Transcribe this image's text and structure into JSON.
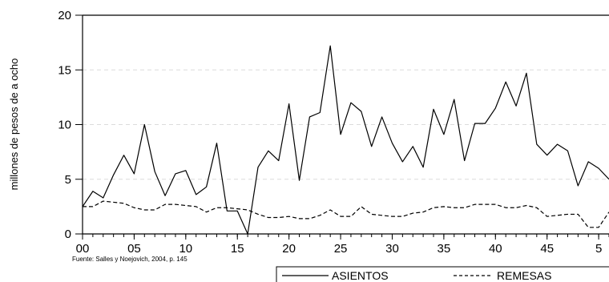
{
  "chart_data": {
    "type": "line",
    "ylabel": "millones de pesos de a ocho",
    "xlabel": "",
    "source": "Fuente: Salles y Noejovich, 2004, p. 145",
    "ylim": [
      0,
      20
    ],
    "xlim": [
      1700,
      1751
    ],
    "yticks": [
      0,
      5,
      10,
      15,
      20
    ],
    "xticks": [
      {
        "value": 1700,
        "label": "00"
      },
      {
        "value": 1705,
        "label": "05"
      },
      {
        "value": 1710,
        "label": "10"
      },
      {
        "value": 1715,
        "label": "15"
      },
      {
        "value": 1720,
        "label": "20"
      },
      {
        "value": 1725,
        "label": "25"
      },
      {
        "value": 1730,
        "label": "30"
      },
      {
        "value": 1735,
        "label": "35"
      },
      {
        "value": 1740,
        "label": "40"
      },
      {
        "value": 1745,
        "label": "45"
      },
      {
        "value": 1750,
        "label": "5"
      }
    ],
    "grid": true,
    "legend": "bottom",
    "x": [
      1700,
      1701,
      1702,
      1703,
      1704,
      1705,
      1706,
      1707,
      1708,
      1709,
      1710,
      1711,
      1712,
      1713,
      1714,
      1715,
      1716,
      1717,
      1718,
      1719,
      1720,
      1721,
      1722,
      1723,
      1724,
      1725,
      1726,
      1727,
      1728,
      1729,
      1730,
      1731,
      1732,
      1733,
      1734,
      1735,
      1736,
      1737,
      1738,
      1739,
      1740,
      1741,
      1742,
      1743,
      1744,
      1745,
      1746,
      1747,
      1748,
      1749,
      1750,
      1751
    ],
    "series": [
      {
        "name": "ASIENTOS",
        "style": "solid",
        "values": [
          2.5,
          3.9,
          3.3,
          5.4,
          7.2,
          5.5,
          10.0,
          5.7,
          3.5,
          5.5,
          5.8,
          3.6,
          4.3,
          8.3,
          2.1,
          2.1,
          0.0,
          6.1,
          7.6,
          6.7,
          11.9,
          4.9,
          10.7,
          11.1,
          17.2,
          9.1,
          12.0,
          11.2,
          8.0,
          10.7,
          8.3,
          6.6,
          8.0,
          6.1,
          11.4,
          9.1,
          12.3,
          6.7,
          10.1,
          10.1,
          11.5,
          13.9,
          11.7,
          14.7,
          8.2,
          7.2,
          8.2,
          7.6,
          4.4,
          6.6,
          6.0,
          5.0
        ]
      },
      {
        "name": "REMESAS",
        "style": "dashed",
        "values": [
          2.5,
          2.5,
          3.0,
          2.9,
          2.8,
          2.4,
          2.2,
          2.2,
          2.7,
          2.7,
          2.6,
          2.5,
          2.0,
          2.4,
          2.4,
          2.3,
          2.2,
          1.8,
          1.5,
          1.5,
          1.6,
          1.4,
          1.4,
          1.7,
          2.2,
          1.6,
          1.6,
          2.5,
          1.8,
          1.7,
          1.6,
          1.6,
          1.9,
          2.0,
          2.4,
          2.5,
          2.4,
          2.4,
          2.7,
          2.7,
          2.7,
          2.4,
          2.4,
          2.6,
          2.4,
          1.6,
          1.7,
          1.8,
          1.8,
          0.6,
          0.6,
          2.0
        ]
      }
    ]
  }
}
